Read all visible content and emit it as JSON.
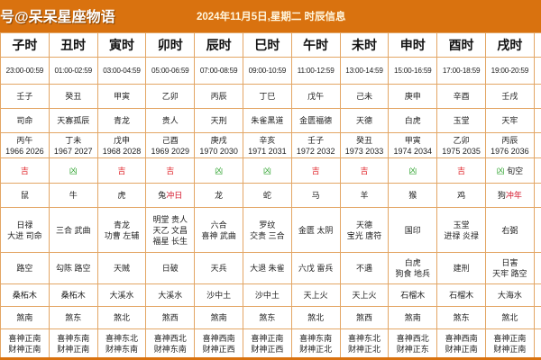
{
  "banner": {
    "brand": "号@呆呆星座物语",
    "title": "2024年11月5日,星期二 时辰信息"
  },
  "colors": {
    "header_bg": "#d9720f",
    "border": "#e3a665",
    "ji": "#e0242a",
    "xiong": "#3aa83a",
    "clash": "#d4142a"
  },
  "columns": [
    {
      "name": "子时",
      "time": "23:00-00:59",
      "ganzhi": "壬子",
      "god": "司命",
      "year": "丙午\n1966 2026",
      "jx": {
        "mark": "吉",
        "type": "ji",
        "note": ""
      },
      "animal": {
        "name": "鼠",
        "clash": ""
      },
      "good": "日禄\n大进 司命",
      "bad": "路空",
      "nayin": "桑柘木",
      "sha": "煞南",
      "xishen": "喜神正南\n财神正南"
    },
    {
      "name": "丑时",
      "time": "01:00-02:59",
      "ganzhi": "癸丑",
      "god": "天寡孤辰",
      "year": "丁未\n1967 2027",
      "jx": {
        "mark": "凶",
        "type": "xiong",
        "note": ""
      },
      "animal": {
        "name": "牛",
        "clash": ""
      },
      "good": "三合 武曲",
      "bad": "勾陈 路空",
      "nayin": "桑柘木",
      "sha": "煞东",
      "xishen": "喜神东南\n财神正南"
    },
    {
      "name": "寅时",
      "time": "03:00-04:59",
      "ganzhi": "甲寅",
      "god": "青龙",
      "year": "戊申\n1968 2028",
      "jx": {
        "mark": "吉",
        "type": "ji",
        "note": ""
      },
      "animal": {
        "name": "虎",
        "clash": ""
      },
      "good": "青龙\n功曹 左辅",
      "bad": "天贼",
      "nayin": "大溪水",
      "sha": "煞北",
      "xishen": "喜神东北\n财神东南"
    },
    {
      "name": "卯时",
      "time": "05:00-06:59",
      "ganzhi": "乙卯",
      "god": "贵人",
      "year": "己酉\n1969 2029",
      "jx": {
        "mark": "吉",
        "type": "ji",
        "note": ""
      },
      "animal": {
        "name": "兔",
        "clash": "冲日"
      },
      "good": "明堂 贵人\n天乙 文昌\n福星 长生",
      "bad": "日破",
      "nayin": "大溪水",
      "sha": "煞西",
      "xishen": "喜神西北\n财神东南"
    },
    {
      "name": "辰时",
      "time": "07:00-08:59",
      "ganzhi": "丙辰",
      "god": "天刑",
      "year": "庚戌\n1970 2030",
      "jx": {
        "mark": "凶",
        "type": "xiong",
        "note": ""
      },
      "animal": {
        "name": "龙",
        "clash": ""
      },
      "good": "六合\n喜神 武曲",
      "bad": "天兵",
      "nayin": "沙中土",
      "sha": "煞南",
      "xishen": "喜神西南\n财神正西"
    },
    {
      "name": "巳时",
      "time": "09:00-10:59",
      "ganzhi": "丁巳",
      "god": "朱雀黑道",
      "year": "辛亥\n1971 2031",
      "jx": {
        "mark": "凶",
        "type": "xiong",
        "note": ""
      },
      "animal": {
        "name": "蛇",
        "clash": ""
      },
      "good": "罗纹\n交贵 三合",
      "bad": "大退 朱雀",
      "nayin": "沙中土",
      "sha": "煞东",
      "xishen": "喜神正南\n财神正西"
    },
    {
      "name": "午时",
      "time": "11:00-12:59",
      "ganzhi": "戊午",
      "god": "金匮福德",
      "year": "壬子\n1972 2032",
      "jx": {
        "mark": "吉",
        "type": "ji",
        "note": ""
      },
      "animal": {
        "name": "马",
        "clash": ""
      },
      "good": "金匮 太阴",
      "bad": "六戊 雷兵",
      "nayin": "天上火",
      "sha": "煞北",
      "xishen": "喜神东南\n财神正北"
    },
    {
      "name": "未时",
      "time": "13:00-14:59",
      "ganzhi": "己未",
      "god": "天德",
      "year": "癸丑\n1973 2033",
      "jx": {
        "mark": "吉",
        "type": "ji",
        "note": ""
      },
      "animal": {
        "name": "羊",
        "clash": ""
      },
      "good": "天德\n宝光 唐符",
      "bad": "不遇",
      "nayin": "天上火",
      "sha": "煞西",
      "xishen": "喜神东北\n财神正北"
    },
    {
      "name": "申时",
      "time": "15:00-16:59",
      "ganzhi": "庚申",
      "god": "白虎",
      "year": "甲寅\n1974 2034",
      "jx": {
        "mark": "凶",
        "type": "xiong",
        "note": ""
      },
      "animal": {
        "name": "猴",
        "clash": ""
      },
      "good": "国印",
      "bad": "白虎\n狗食 地兵",
      "nayin": "石榴木",
      "sha": "煞南",
      "xishen": "喜神西北\n财神正东"
    },
    {
      "name": "酉时",
      "time": "17:00-18:59",
      "ganzhi": "辛酉",
      "god": "玉堂",
      "year": "乙卯\n1975 2035",
      "jx": {
        "mark": "吉",
        "type": "ji",
        "note": ""
      },
      "animal": {
        "name": "鸡",
        "clash": ""
      },
      "good": "玉堂\n进禄 炎禄",
      "bad": "建刑",
      "nayin": "石榴木",
      "sha": "煞东",
      "xishen": "喜神西南\n财神正南"
    },
    {
      "name": "戌时",
      "time": "19:00-20:59",
      "ganzhi": "壬戌",
      "god": "天牢",
      "year": "丙辰\n1976 2036",
      "jx": {
        "mark": "凶",
        "type": "xiong",
        "note": "旬空"
      },
      "animal": {
        "name": "狗",
        "clash": "冲年"
      },
      "good": "右弼",
      "bad": "日害\n天牢 路空",
      "nayin": "大海水",
      "sha": "煞北",
      "xishen": "喜神正南\n财神正南"
    }
  ]
}
